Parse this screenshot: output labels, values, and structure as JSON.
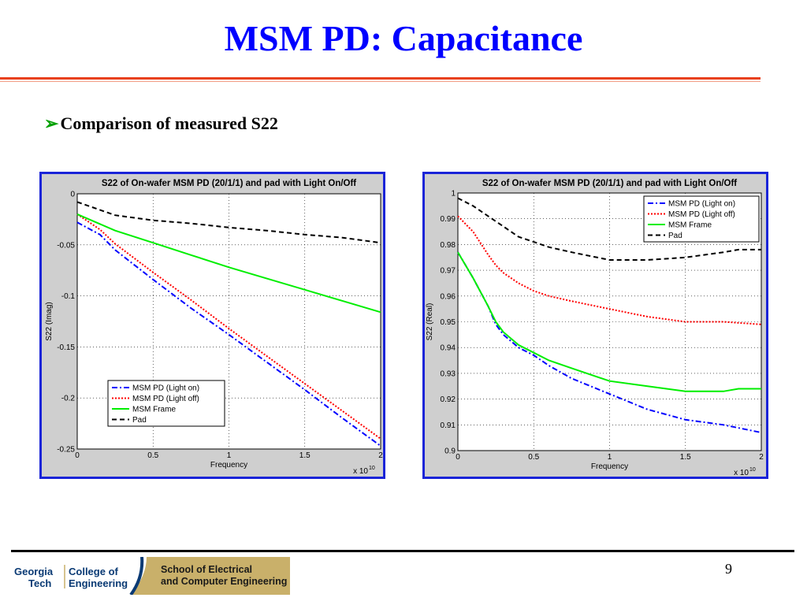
{
  "slide": {
    "title": "MSM PD: Capacitance",
    "bullet_marker": "➢",
    "bullet": "Comparison of measured S22",
    "page_number": "9",
    "accent_color": "#e8401c",
    "title_color": "#0000ff"
  },
  "footer": {
    "logo_georgia": "Georgia",
    "logo_tech": "Tech",
    "logo_college": "College of",
    "logo_engineering": "Engineering",
    "logo_school_line1": "School of Electrical",
    "logo_school_line2": "and Computer Engineering",
    "logo_color": "#0a3a74",
    "logo_gold": "#c9b06a"
  },
  "chart_data": [
    {
      "type": "line",
      "title": "S22 of On-wafer MSM PD (20/1/1) and pad with Light On/Off",
      "xlabel": "Frequency",
      "ylabel": "S22 (Imag)",
      "x_multiplier": "x 10",
      "x_multiplier_exp": "10",
      "xlim": [
        0,
        2
      ],
      "ylim": [
        -0.25,
        0
      ],
      "xticks": [
        "0",
        "0.5",
        "1",
        "1.5",
        "2"
      ],
      "yticks": [
        "0",
        "-0.05",
        "-0.1",
        "-0.15",
        "-0.2",
        "-0.25"
      ],
      "xtick_values": [
        0,
        0.5,
        1,
        1.5,
        2
      ],
      "ytick_values": [
        0,
        -0.05,
        -0.1,
        -0.15,
        -0.2,
        -0.25
      ],
      "grid": true,
      "legend_position": "bottom-left",
      "series": [
        {
          "name": "MSM PD (Light on)",
          "color": "#0000ff",
          "dash": "7,3,2,3",
          "x": [
            0,
            0.15,
            0.25,
            0.5,
            0.75,
            1.0,
            1.25,
            1.5,
            1.75,
            2.0
          ],
          "y": [
            -0.028,
            -0.04,
            -0.055,
            -0.084,
            -0.112,
            -0.138,
            -0.165,
            -0.192,
            -0.22,
            -0.247
          ]
        },
        {
          "name": "MSM PD (Light off)",
          "color": "#ff0000",
          "dash": "2,2",
          "x": [
            0,
            0.15,
            0.25,
            0.5,
            0.75,
            1.0,
            1.25,
            1.5,
            1.75,
            2.0
          ],
          "y": [
            -0.02,
            -0.035,
            -0.049,
            -0.077,
            -0.104,
            -0.132,
            -0.159,
            -0.186,
            -0.213,
            -0.24
          ]
        },
        {
          "name": "MSM Frame",
          "color": "#00ee00",
          "dash": "",
          "x": [
            0,
            0.25,
            0.5,
            0.75,
            1.0,
            1.25,
            1.5,
            1.75,
            2.0
          ],
          "y": [
            -0.02,
            -0.036,
            -0.048,
            -0.06,
            -0.072,
            -0.083,
            -0.094,
            -0.105,
            -0.116
          ]
        },
        {
          "name": "Pad",
          "color": "#000000",
          "dash": "6,4",
          "x": [
            0,
            0.25,
            0.5,
            0.75,
            1.0,
            1.25,
            1.5,
            1.75,
            2.0
          ],
          "y": [
            -0.008,
            -0.021,
            -0.026,
            -0.029,
            -0.033,
            -0.036,
            -0.04,
            -0.043,
            -0.048
          ]
        }
      ]
    },
    {
      "type": "line",
      "title": "S22 of On-wafer MSM PD (20/1/1) and pad with Light On/Off",
      "xlabel": "Frequency",
      "ylabel": "S22 (Real)",
      "x_multiplier": "x 10",
      "x_multiplier_exp": "10",
      "xlim": [
        0,
        2
      ],
      "ylim": [
        0.9,
        1
      ],
      "xticks": [
        "0",
        "0.5",
        "1",
        "1.5",
        "2"
      ],
      "yticks": [
        "1",
        "0.99",
        "0.98",
        "0.97",
        "0.96",
        "0.95",
        "0.94",
        "0.93",
        "0.92",
        "0.91",
        "0.9"
      ],
      "xtick_values": [
        0,
        0.5,
        1,
        1.5,
        2
      ],
      "ytick_values": [
        1,
        0.99,
        0.98,
        0.97,
        0.96,
        0.95,
        0.94,
        0.93,
        0.92,
        0.91,
        0.9
      ],
      "grid": true,
      "legend_position": "top-right",
      "series": [
        {
          "name": "MSM PD (Light on)",
          "color": "#0000ff",
          "dash": "7,3,2,3",
          "x": [
            0,
            0.1,
            0.2,
            0.25,
            0.3,
            0.4,
            0.5,
            0.6,
            0.75,
            1.0,
            1.25,
            1.5,
            1.75,
            2.0
          ],
          "y": [
            0.977,
            0.967,
            0.956,
            0.949,
            0.945,
            0.94,
            0.937,
            0.933,
            0.928,
            0.922,
            0.916,
            0.912,
            0.91,
            0.907
          ]
        },
        {
          "name": "MSM PD (Light off)",
          "color": "#ff0000",
          "dash": "2,2",
          "x": [
            0,
            0.1,
            0.2,
            0.25,
            0.3,
            0.4,
            0.5,
            0.6,
            0.75,
            1.0,
            1.25,
            1.5,
            1.75,
            2.0
          ],
          "y": [
            0.991,
            0.985,
            0.976,
            0.972,
            0.969,
            0.965,
            0.962,
            0.96,
            0.958,
            0.955,
            0.952,
            0.95,
            0.95,
            0.949
          ]
        },
        {
          "name": "MSM Frame",
          "color": "#00ee00",
          "dash": "",
          "x": [
            0,
            0.1,
            0.2,
            0.25,
            0.3,
            0.4,
            0.5,
            0.6,
            0.75,
            1.0,
            1.25,
            1.5,
            1.75,
            1.85,
            2.0
          ],
          "y": [
            0.977,
            0.967,
            0.956,
            0.95,
            0.946,
            0.941,
            0.938,
            0.935,
            0.932,
            0.927,
            0.925,
            0.923,
            0.923,
            0.924,
            0.924
          ]
        },
        {
          "name": "Pad",
          "color": "#000000",
          "dash": "6,4",
          "x": [
            0,
            0.1,
            0.2,
            0.3,
            0.4,
            0.5,
            0.6,
            0.75,
            1.0,
            1.25,
            1.5,
            1.75,
            1.85,
            2.0
          ],
          "y": [
            0.998,
            0.995,
            0.991,
            0.987,
            0.983,
            0.981,
            0.979,
            0.977,
            0.974,
            0.974,
            0.975,
            0.977,
            0.978,
            0.978
          ]
        }
      ]
    }
  ]
}
